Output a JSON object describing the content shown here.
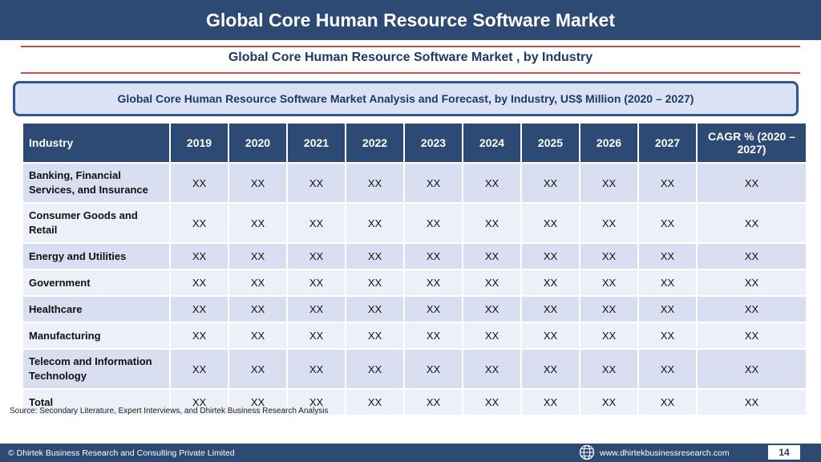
{
  "header": {
    "title": "Global Core Human Resource Software Market"
  },
  "subtitle": "Global Core Human Resource Software Market , by Industry",
  "banner": "Global Core Human Resource Software Market  Analysis and Forecast, by Industry, US$ Million (2020 – 2027)",
  "table": {
    "headers": [
      "Industry",
      "2019",
      "2020",
      "2021",
      "2022",
      "2023",
      "2024",
      "2025",
      "2026",
      "2027",
      "CAGR % (2020 – 2027)"
    ],
    "rows": [
      {
        "industry": "Banking, Financial Services, and Insurance",
        "values": [
          "XX",
          "XX",
          "XX",
          "XX",
          "XX",
          "XX",
          "XX",
          "XX",
          "XX",
          "XX"
        ]
      },
      {
        "industry": "Consumer Goods and Retail",
        "values": [
          "XX",
          "XX",
          "XX",
          "XX",
          "XX",
          "XX",
          "XX",
          "XX",
          "XX",
          "XX"
        ]
      },
      {
        "industry": "Energy and Utilities",
        "values": [
          "XX",
          "XX",
          "XX",
          "XX",
          "XX",
          "XX",
          "XX",
          "XX",
          "XX",
          "XX"
        ]
      },
      {
        "industry": "Government",
        "values": [
          "XX",
          "XX",
          "XX",
          "XX",
          "XX",
          "XX",
          "XX",
          "XX",
          "XX",
          "XX"
        ]
      },
      {
        "industry": "Healthcare",
        "values": [
          "XX",
          "XX",
          "XX",
          "XX",
          "XX",
          "XX",
          "XX",
          "XX",
          "XX",
          "XX"
        ]
      },
      {
        "industry": "Manufacturing",
        "values": [
          "XX",
          "XX",
          "XX",
          "XX",
          "XX",
          "XX",
          "XX",
          "XX",
          "XX",
          "XX"
        ]
      },
      {
        "industry": "Telecom and Information Technology",
        "values": [
          "XX",
          "XX",
          "XX",
          "XX",
          "XX",
          "XX",
          "XX",
          "XX",
          "XX",
          "XX"
        ]
      },
      {
        "industry": "Total",
        "values": [
          "XX",
          "XX",
          "XX",
          "XX",
          "XX",
          "XX",
          "XX",
          "XX",
          "XX",
          "XX"
        ]
      }
    ]
  },
  "source": "Source: Secondary Literature, Expert Interviews, and Dhirtek Business Research Analysis",
  "footer": {
    "copyright": "© Dhirtek Business Research and Consulting Private Limited",
    "website": "www.dhirtekbusinessresearch.com",
    "website_icon": "globe-icon",
    "page_number": "14"
  },
  "colors": {
    "header_bg": "#2c4a73",
    "rule": "#c0504d",
    "banner_border": "#2f5597",
    "banner_bg": "#dae3f3",
    "row_odd": "#d9dff0",
    "row_even": "#edf0f8"
  }
}
